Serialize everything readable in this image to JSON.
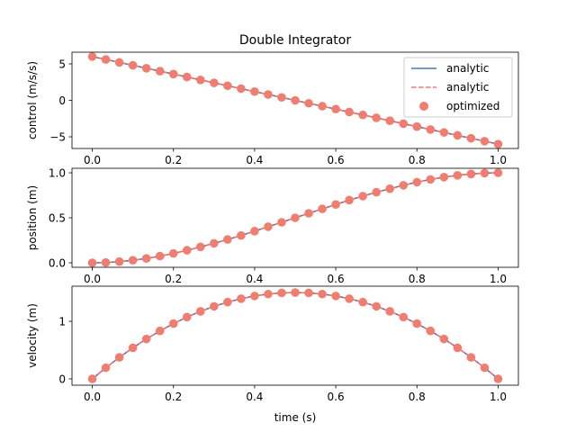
{
  "figure": {
    "title": "Double Integrator",
    "xlabel": "time (s)"
  },
  "legend": {
    "placement": "top-right",
    "entries": [
      {
        "label": "analytic",
        "style": "solid-line",
        "color": "#4878b0"
      },
      {
        "label": "analytic",
        "style": "dashed-line",
        "color": "#f07872"
      },
      {
        "label": "optimized",
        "style": "marker",
        "color": "#f07e70"
      }
    ]
  },
  "chart_data": [
    {
      "type": "line",
      "name": "control",
      "ylabel": "control (m/s/s)",
      "xlim": [
        -0.05,
        1.05
      ],
      "ylim": [
        -6.6,
        6.6
      ],
      "xticks": [
        0.0,
        0.2,
        0.4,
        0.6,
        0.8,
        1.0
      ],
      "xtick_labels": [
        "0.0",
        "0.2",
        "0.4",
        "0.6",
        "0.8",
        "1.0"
      ],
      "yticks": [
        -5,
        0,
        5
      ],
      "ytick_labels": [
        "−5",
        "0",
        "5"
      ],
      "x": [
        0.0,
        0.0333,
        0.0667,
        0.1,
        0.1333,
        0.1667,
        0.2,
        0.2333,
        0.2667,
        0.3,
        0.3333,
        0.3667,
        0.4,
        0.4333,
        0.4667,
        0.5,
        0.5333,
        0.5667,
        0.6,
        0.6333,
        0.6667,
        0.7,
        0.7333,
        0.7667,
        0.8,
        0.8333,
        0.8667,
        0.9,
        0.9333,
        0.9667,
        1.0
      ],
      "series": [
        {
          "name": "analytic",
          "style": "solid",
          "color": "#4878b0",
          "values": [
            6.0,
            5.6,
            5.2,
            4.8,
            4.4,
            4.0,
            3.6,
            3.2,
            2.8,
            2.4,
            2.0,
            1.6,
            1.2,
            0.8,
            0.4,
            0.0,
            -0.4,
            -0.8,
            -1.2,
            -1.6,
            -2.0,
            -2.4,
            -2.8,
            -3.2,
            -3.6,
            -4.0,
            -4.4,
            -4.8,
            -5.2,
            -5.6,
            -6.0
          ]
        },
        {
          "name": "analytic",
          "style": "dashed",
          "color": "#f07872",
          "values": [
            6.0,
            5.6,
            5.2,
            4.8,
            4.4,
            4.0,
            3.6,
            3.2,
            2.8,
            2.4,
            2.0,
            1.6,
            1.2,
            0.8,
            0.4,
            0.0,
            -0.4,
            -0.8,
            -1.2,
            -1.6,
            -2.0,
            -2.4,
            -2.8,
            -3.2,
            -3.6,
            -4.0,
            -4.4,
            -4.8,
            -5.2,
            -5.6,
            -6.0
          ]
        },
        {
          "name": "optimized",
          "style": "marker",
          "color": "#f07e70",
          "values": [
            6.0,
            5.6,
            5.2,
            4.8,
            4.4,
            4.0,
            3.6,
            3.2,
            2.8,
            2.4,
            2.0,
            1.6,
            1.2,
            0.8,
            0.4,
            0.0,
            -0.4,
            -0.8,
            -1.2,
            -1.6,
            -2.0,
            -2.4,
            -2.8,
            -3.2,
            -3.6,
            -4.0,
            -4.4,
            -4.8,
            -5.2,
            -5.6,
            -6.0
          ]
        }
      ]
    },
    {
      "type": "line",
      "name": "position",
      "ylabel": "position (m)",
      "xlim": [
        -0.05,
        1.05
      ],
      "ylim": [
        -0.05,
        1.05
      ],
      "xticks": [
        0.0,
        0.2,
        0.4,
        0.6,
        0.8,
        1.0
      ],
      "xtick_labels": [
        "0.0",
        "0.2",
        "0.4",
        "0.6",
        "0.8",
        "1.0"
      ],
      "yticks": [
        0.0,
        0.5,
        1.0
      ],
      "ytick_labels": [
        "0.0",
        "0.5",
        "1.0"
      ],
      "x": [
        0.0,
        0.0333,
        0.0667,
        0.1,
        0.1333,
        0.1667,
        0.2,
        0.2333,
        0.2667,
        0.3,
        0.3333,
        0.3667,
        0.4,
        0.4333,
        0.4667,
        0.5,
        0.5333,
        0.5667,
        0.6,
        0.6333,
        0.6667,
        0.7,
        0.7333,
        0.7667,
        0.8,
        0.8333,
        0.8667,
        0.9,
        0.9333,
        0.9667,
        1.0
      ],
      "series": [
        {
          "name": "analytic",
          "style": "solid",
          "color": "#4878b0",
          "values": [
            0.0,
            0.003,
            0.013,
            0.028,
            0.048,
            0.074,
            0.104,
            0.139,
            0.177,
            0.216,
            0.259,
            0.303,
            0.352,
            0.401,
            0.45,
            0.5,
            0.55,
            0.599,
            0.648,
            0.697,
            0.741,
            0.784,
            0.823,
            0.861,
            0.896,
            0.926,
            0.952,
            0.972,
            0.987,
            0.997,
            1.0
          ]
        },
        {
          "name": "analytic",
          "style": "dashed",
          "color": "#f07872",
          "values": [
            0.0,
            0.003,
            0.013,
            0.028,
            0.048,
            0.074,
            0.104,
            0.139,
            0.177,
            0.216,
            0.259,
            0.303,
            0.352,
            0.401,
            0.45,
            0.5,
            0.55,
            0.599,
            0.648,
            0.697,
            0.741,
            0.784,
            0.823,
            0.861,
            0.896,
            0.926,
            0.952,
            0.972,
            0.987,
            0.997,
            1.0
          ]
        },
        {
          "name": "optimized",
          "style": "marker",
          "color": "#f07e70",
          "values": [
            0.0,
            0.003,
            0.013,
            0.028,
            0.048,
            0.074,
            0.104,
            0.139,
            0.177,
            0.216,
            0.259,
            0.303,
            0.352,
            0.401,
            0.45,
            0.5,
            0.55,
            0.599,
            0.648,
            0.697,
            0.741,
            0.784,
            0.823,
            0.861,
            0.896,
            0.926,
            0.952,
            0.972,
            0.987,
            0.997,
            1.0
          ]
        }
      ]
    },
    {
      "type": "line",
      "name": "velocity",
      "ylabel": "velocity (m)",
      "xlim": [
        -0.05,
        1.05
      ],
      "ylim": [
        -0.11,
        1.61
      ],
      "xticks": [
        0.0,
        0.2,
        0.4,
        0.6,
        0.8,
        1.0
      ],
      "xtick_labels": [
        "0.0",
        "0.2",
        "0.4",
        "0.6",
        "0.8",
        "1.0"
      ],
      "yticks": [
        0,
        1
      ],
      "ytick_labels": [
        "0",
        "1"
      ],
      "x": [
        0.0,
        0.0333,
        0.0667,
        0.1,
        0.1333,
        0.1667,
        0.2,
        0.2333,
        0.2667,
        0.3,
        0.3333,
        0.3667,
        0.4,
        0.4333,
        0.4667,
        0.5,
        0.5333,
        0.5667,
        0.6,
        0.6333,
        0.6667,
        0.7,
        0.7333,
        0.7667,
        0.8,
        0.8333,
        0.8667,
        0.9,
        0.9333,
        0.9667,
        1.0
      ],
      "series": [
        {
          "name": "analytic",
          "style": "solid",
          "color": "#4878b0",
          "values": [
            0.0,
            0.193,
            0.373,
            0.54,
            0.693,
            0.833,
            0.96,
            1.073,
            1.173,
            1.26,
            1.333,
            1.393,
            1.44,
            1.473,
            1.493,
            1.5,
            1.493,
            1.473,
            1.44,
            1.393,
            1.333,
            1.26,
            1.173,
            1.073,
            0.96,
            0.833,
            0.693,
            0.54,
            0.373,
            0.193,
            0.0
          ]
        },
        {
          "name": "analytic",
          "style": "dashed",
          "color": "#f07872",
          "values": [
            0.0,
            0.193,
            0.373,
            0.54,
            0.693,
            0.833,
            0.96,
            1.073,
            1.173,
            1.26,
            1.333,
            1.393,
            1.44,
            1.473,
            1.493,
            1.5,
            1.493,
            1.473,
            1.44,
            1.393,
            1.333,
            1.26,
            1.173,
            1.073,
            0.96,
            0.833,
            0.693,
            0.54,
            0.373,
            0.193,
            0.0
          ]
        },
        {
          "name": "optimized",
          "style": "marker",
          "color": "#f07e70",
          "values": [
            0.0,
            0.193,
            0.373,
            0.54,
            0.693,
            0.833,
            0.96,
            1.073,
            1.173,
            1.26,
            1.333,
            1.393,
            1.44,
            1.473,
            1.493,
            1.5,
            1.493,
            1.473,
            1.44,
            1.393,
            1.333,
            1.26,
            1.173,
            1.073,
            0.96,
            0.833,
            0.693,
            0.54,
            0.373,
            0.193,
            0.0
          ]
        }
      ]
    }
  ]
}
